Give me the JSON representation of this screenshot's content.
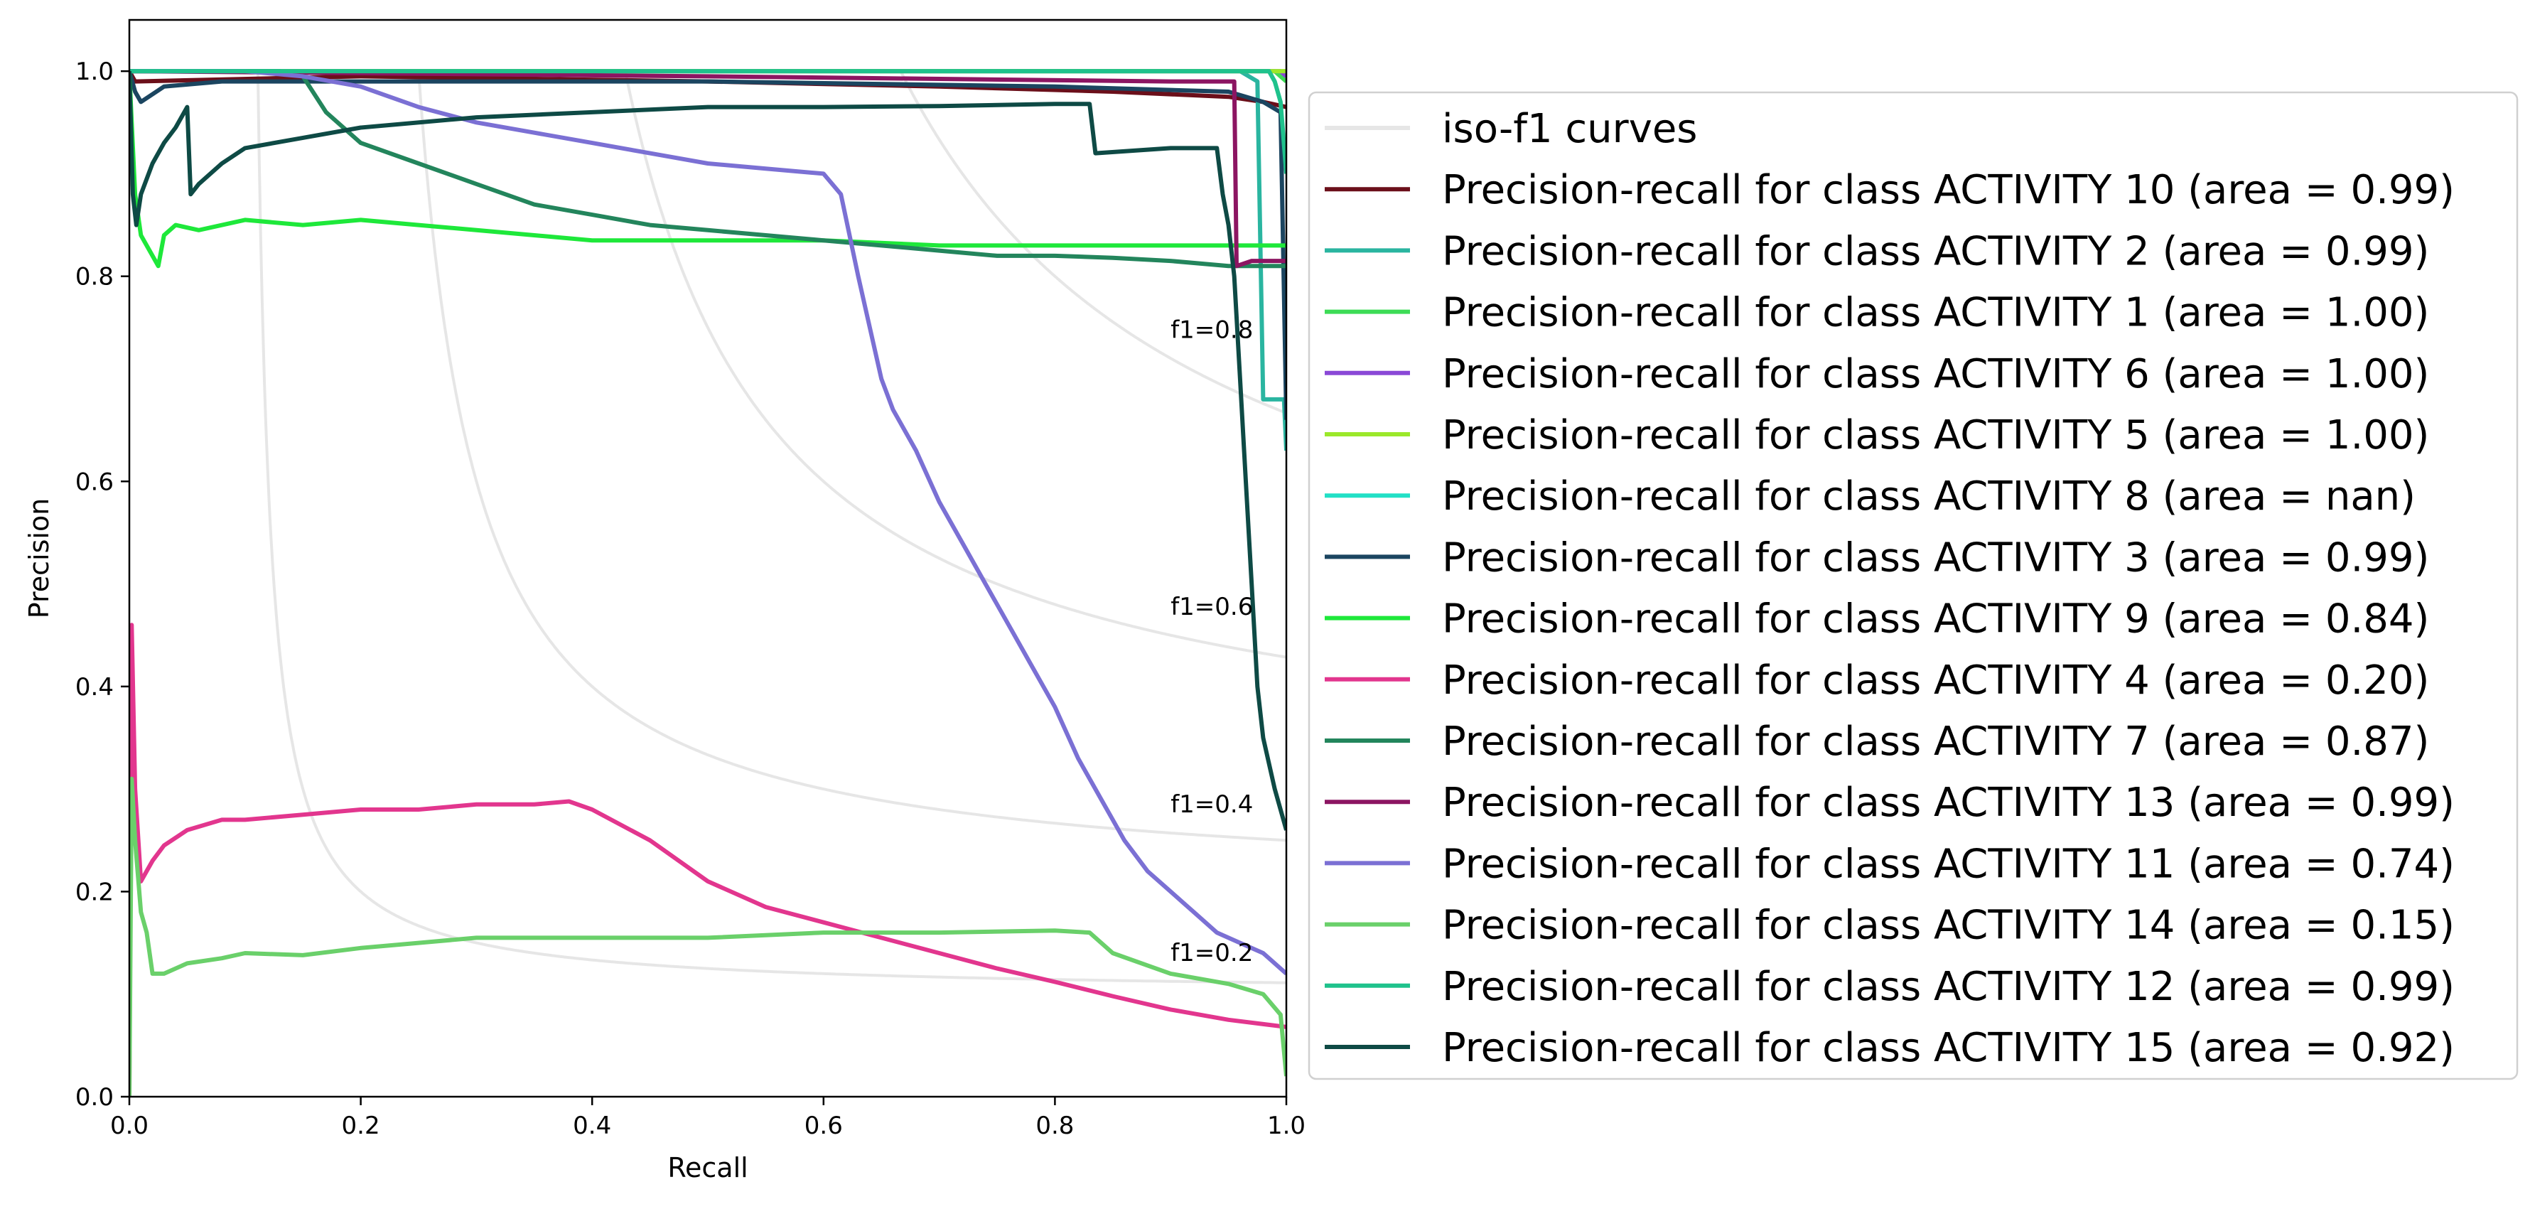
{
  "chart_data": {
    "type": "line",
    "title": "",
    "xlabel": "Recall",
    "ylabel": "Precision",
    "xlim": [
      0.0,
      1.0
    ],
    "ylim": [
      0.0,
      1.05
    ],
    "x_ticks": [
      "0.0",
      "0.2",
      "0.4",
      "0.6",
      "0.8",
      "1.0"
    ],
    "y_ticks": [
      "0.0",
      "0.2",
      "0.4",
      "0.6",
      "0.8",
      "1.0"
    ],
    "grid": false,
    "legend_placement": "right, outside plot",
    "iso_f1": {
      "legend_label": "iso-f1 curves",
      "color": "#e6e6e6",
      "values": [
        0.2,
        0.4,
        0.6,
        0.8
      ],
      "labels": [
        "f1=0.2",
        "f1=0.4",
        "f1=0.6",
        "f1=0.8"
      ]
    },
    "series": [
      {
        "name": "Precision-recall for class ACTIVITY 10 (area = 0.99)",
        "color": "#6b0f1a",
        "points": [
          [
            0,
            1.0
          ],
          [
            0.005,
            0.99
          ],
          [
            0.2,
            0.995
          ],
          [
            0.5,
            0.99
          ],
          [
            0.7,
            0.985
          ],
          [
            0.85,
            0.98
          ],
          [
            0.95,
            0.975
          ],
          [
            0.98,
            0.97
          ],
          [
            1.0,
            0.965
          ]
        ]
      },
      {
        "name": "Precision-recall for class ACTIVITY 2 (area = 0.99)",
        "color": "#2ab5a0",
        "points": [
          [
            0,
            1.0
          ],
          [
            0.5,
            1.0
          ],
          [
            0.96,
            1.0
          ],
          [
            0.975,
            0.99
          ],
          [
            0.98,
            0.68
          ],
          [
            0.998,
            0.68
          ],
          [
            1.0,
            0.63
          ]
        ]
      },
      {
        "name": "Precision-recall for class ACTIVITY 1 (area = 1.00)",
        "color": "#3ddc56",
        "points": [
          [
            0,
            1.0
          ],
          [
            0.5,
            1.0
          ],
          [
            0.99,
            1.0
          ],
          [
            1.0,
            0.99
          ]
        ]
      },
      {
        "name": "Precision-recall for class ACTIVITY 6 (area = 1.00)",
        "color": "#8a48d6",
        "points": [
          [
            0,
            1.0
          ],
          [
            0.5,
            1.0
          ],
          [
            0.995,
            1.0
          ],
          [
            1.0,
            0.995
          ]
        ]
      },
      {
        "name": "Precision-recall for class ACTIVITY 5 (area = 1.00)",
        "color": "#9be82a",
        "points": [
          [
            0,
            1.0
          ],
          [
            0.5,
            1.0
          ],
          [
            1.0,
            1.0
          ]
        ]
      },
      {
        "name": "Precision-recall for class ACTIVITY 8 (area = nan)",
        "color": "#22e0c6",
        "points": []
      },
      {
        "name": "Precision-recall for class ACTIVITY 3 (area = 0.99)",
        "color": "#1b4560",
        "points": [
          [
            0,
            1.0
          ],
          [
            0.005,
            0.98
          ],
          [
            0.01,
            0.97
          ],
          [
            0.03,
            0.985
          ],
          [
            0.08,
            0.99
          ],
          [
            0.2,
            0.99
          ],
          [
            0.5,
            0.99
          ],
          [
            0.8,
            0.985
          ],
          [
            0.95,
            0.98
          ],
          [
            0.98,
            0.97
          ],
          [
            0.995,
            0.96
          ],
          [
            1.0,
            0.66
          ]
        ]
      },
      {
        "name": "Precision-recall for class ACTIVITY 9 (area = 0.84)",
        "color": "#1ee83a",
        "points": [
          [
            0,
            1.0
          ],
          [
            0.002,
            0.95
          ],
          [
            0.005,
            0.88
          ],
          [
            0.01,
            0.84
          ],
          [
            0.015,
            0.83
          ],
          [
            0.02,
            0.82
          ],
          [
            0.025,
            0.81
          ],
          [
            0.03,
            0.84
          ],
          [
            0.04,
            0.85
          ],
          [
            0.06,
            0.845
          ],
          [
            0.1,
            0.855
          ],
          [
            0.15,
            0.85
          ],
          [
            0.2,
            0.855
          ],
          [
            0.25,
            0.85
          ],
          [
            0.3,
            0.845
          ],
          [
            0.35,
            0.84
          ],
          [
            0.4,
            0.835
          ],
          [
            0.5,
            0.835
          ],
          [
            0.6,
            0.835
          ],
          [
            0.7,
            0.83
          ],
          [
            0.8,
            0.83
          ],
          [
            0.9,
            0.83
          ],
          [
            1.0,
            0.83
          ]
        ]
      },
      {
        "name": "Precision-recall for class ACTIVITY 4 (area = 0.20)",
        "color": "#e2368e",
        "points": [
          [
            0,
            0.0
          ],
          [
            0.002,
            0.46
          ],
          [
            0.005,
            0.3
          ],
          [
            0.01,
            0.21
          ],
          [
            0.015,
            0.22
          ],
          [
            0.02,
            0.23
          ],
          [
            0.03,
            0.245
          ],
          [
            0.05,
            0.26
          ],
          [
            0.08,
            0.27
          ],
          [
            0.1,
            0.27
          ],
          [
            0.15,
            0.275
          ],
          [
            0.2,
            0.28
          ],
          [
            0.25,
            0.28
          ],
          [
            0.3,
            0.285
          ],
          [
            0.35,
            0.285
          ],
          [
            0.38,
            0.288
          ],
          [
            0.4,
            0.28
          ],
          [
            0.45,
            0.25
          ],
          [
            0.5,
            0.21
          ],
          [
            0.55,
            0.185
          ],
          [
            0.6,
            0.17
          ],
          [
            0.65,
            0.155
          ],
          [
            0.7,
            0.14
          ],
          [
            0.75,
            0.125
          ],
          [
            0.8,
            0.112
          ],
          [
            0.85,
            0.098
          ],
          [
            0.9,
            0.085
          ],
          [
            0.95,
            0.075
          ],
          [
            1.0,
            0.068
          ]
        ]
      },
      {
        "name": "Precision-recall for class ACTIVITY 7 (area = 0.87)",
        "color": "#23855c",
        "points": [
          [
            0,
            1.0
          ],
          [
            0.08,
            1.0
          ],
          [
            0.13,
            1.0
          ],
          [
            0.15,
            0.995
          ],
          [
            0.17,
            0.96
          ],
          [
            0.2,
            0.93
          ],
          [
            0.25,
            0.91
          ],
          [
            0.3,
            0.89
          ],
          [
            0.35,
            0.87
          ],
          [
            0.4,
            0.86
          ],
          [
            0.45,
            0.85
          ],
          [
            0.5,
            0.845
          ],
          [
            0.55,
            0.84
          ],
          [
            0.6,
            0.835
          ],
          [
            0.65,
            0.83
          ],
          [
            0.7,
            0.825
          ],
          [
            0.75,
            0.82
          ],
          [
            0.8,
            0.82
          ],
          [
            0.85,
            0.818
          ],
          [
            0.9,
            0.815
          ],
          [
            0.95,
            0.81
          ],
          [
            1.0,
            0.81
          ]
        ]
      },
      {
        "name": "Precision-recall for class ACTIVITY 13 (area = 0.99)",
        "color": "#8c1562",
        "points": [
          [
            0,
            1.0
          ],
          [
            0.5,
            0.995
          ],
          [
            0.9,
            0.99
          ],
          [
            0.955,
            0.99
          ],
          [
            0.957,
            0.81
          ],
          [
            0.97,
            0.815
          ],
          [
            1.0,
            0.815
          ]
        ]
      },
      {
        "name": "Precision-recall for class ACTIVITY 11 (area = 0.74)",
        "color": "#7b70d4",
        "points": [
          [
            0,
            1.0
          ],
          [
            0.1,
            1.0
          ],
          [
            0.15,
            0.995
          ],
          [
            0.2,
            0.985
          ],
          [
            0.25,
            0.965
          ],
          [
            0.3,
            0.95
          ],
          [
            0.35,
            0.94
          ],
          [
            0.4,
            0.93
          ],
          [
            0.45,
            0.92
          ],
          [
            0.5,
            0.91
          ],
          [
            0.55,
            0.905
          ],
          [
            0.6,
            0.9
          ],
          [
            0.615,
            0.88
          ],
          [
            0.63,
            0.8
          ],
          [
            0.64,
            0.75
          ],
          [
            0.65,
            0.7
          ],
          [
            0.66,
            0.67
          ],
          [
            0.68,
            0.63
          ],
          [
            0.7,
            0.58
          ],
          [
            0.72,
            0.54
          ],
          [
            0.74,
            0.5
          ],
          [
            0.76,
            0.46
          ],
          [
            0.78,
            0.42
          ],
          [
            0.8,
            0.38
          ],
          [
            0.82,
            0.33
          ],
          [
            0.84,
            0.29
          ],
          [
            0.86,
            0.25
          ],
          [
            0.88,
            0.22
          ],
          [
            0.9,
            0.2
          ],
          [
            0.92,
            0.18
          ],
          [
            0.94,
            0.16
          ],
          [
            0.96,
            0.15
          ],
          [
            0.98,
            0.14
          ],
          [
            1.0,
            0.12
          ]
        ]
      },
      {
        "name": "Precision-recall for class ACTIVITY 14 (area = 0.15)",
        "color": "#6ad06a",
        "points": [
          [
            0,
            0.0
          ],
          [
            0.002,
            0.31
          ],
          [
            0.005,
            0.25
          ],
          [
            0.01,
            0.18
          ],
          [
            0.015,
            0.16
          ],
          [
            0.02,
            0.12
          ],
          [
            0.03,
            0.12
          ],
          [
            0.05,
            0.13
          ],
          [
            0.08,
            0.135
          ],
          [
            0.1,
            0.14
          ],
          [
            0.15,
            0.138
          ],
          [
            0.2,
            0.145
          ],
          [
            0.25,
            0.15
          ],
          [
            0.3,
            0.155
          ],
          [
            0.35,
            0.155
          ],
          [
            0.4,
            0.155
          ],
          [
            0.5,
            0.155
          ],
          [
            0.6,
            0.16
          ],
          [
            0.7,
            0.16
          ],
          [
            0.8,
            0.162
          ],
          [
            0.83,
            0.16
          ],
          [
            0.85,
            0.14
          ],
          [
            0.9,
            0.12
          ],
          [
            0.95,
            0.11
          ],
          [
            0.98,
            0.1
          ],
          [
            0.995,
            0.08
          ],
          [
            1.0,
            0.02
          ]
        ]
      },
      {
        "name": "Precision-recall for class ACTIVITY 12 (area = 0.99)",
        "color": "#1fc28c",
        "points": [
          [
            0,
            1.0
          ],
          [
            0.5,
            1.0
          ],
          [
            0.985,
            1.0
          ],
          [
            0.99,
            0.99
          ],
          [
            0.995,
            0.97
          ],
          [
            1.0,
            0.9
          ]
        ]
      },
      {
        "name": "Precision-recall for class ACTIVITY 15 (area = 0.92)",
        "color": "#0e4a45",
        "points": [
          [
            0,
            1.0
          ],
          [
            0.003,
            0.88
          ],
          [
            0.006,
            0.85
          ],
          [
            0.01,
            0.88
          ],
          [
            0.02,
            0.91
          ],
          [
            0.03,
            0.93
          ],
          [
            0.04,
            0.945
          ],
          [
            0.05,
            0.965
          ],
          [
            0.053,
            0.88
          ],
          [
            0.06,
            0.89
          ],
          [
            0.08,
            0.91
          ],
          [
            0.1,
            0.925
          ],
          [
            0.15,
            0.935
          ],
          [
            0.2,
            0.945
          ],
          [
            0.3,
            0.955
          ],
          [
            0.4,
            0.96
          ],
          [
            0.5,
            0.965
          ],
          [
            0.6,
            0.965
          ],
          [
            0.7,
            0.966
          ],
          [
            0.8,
            0.968
          ],
          [
            0.83,
            0.968
          ],
          [
            0.835,
            0.92
          ],
          [
            0.9,
            0.925
          ],
          [
            0.94,
            0.925
          ],
          [
            0.945,
            0.88
          ],
          [
            0.95,
            0.85
          ],
          [
            0.955,
            0.8
          ],
          [
            0.96,
            0.7
          ],
          [
            0.965,
            0.6
          ],
          [
            0.97,
            0.5
          ],
          [
            0.975,
            0.4
          ],
          [
            0.98,
            0.35
          ],
          [
            0.99,
            0.3
          ],
          [
            1.0,
            0.26
          ]
        ]
      }
    ]
  }
}
